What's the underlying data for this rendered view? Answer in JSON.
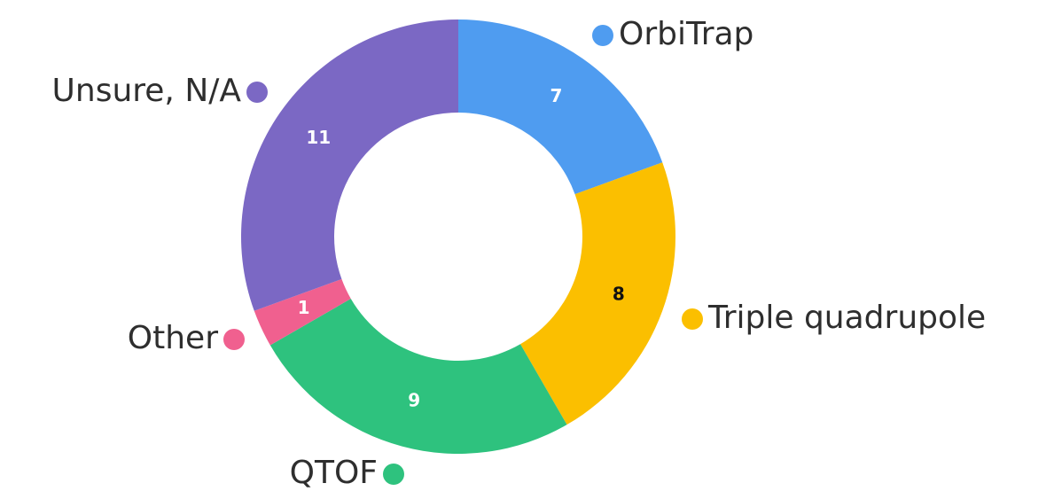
{
  "chart_data": {
    "type": "donut",
    "categories": [
      "OrbiTrap",
      "Triple quadrupole",
      "QTOF",
      "Other",
      "Unsure, N/A"
    ],
    "values": [
      7,
      8,
      9,
      1,
      11
    ],
    "colors": [
      "#4f9cf0",
      "#fbbf00",
      "#2ec27e",
      "#f0608f",
      "#7b68c4"
    ]
  }
}
